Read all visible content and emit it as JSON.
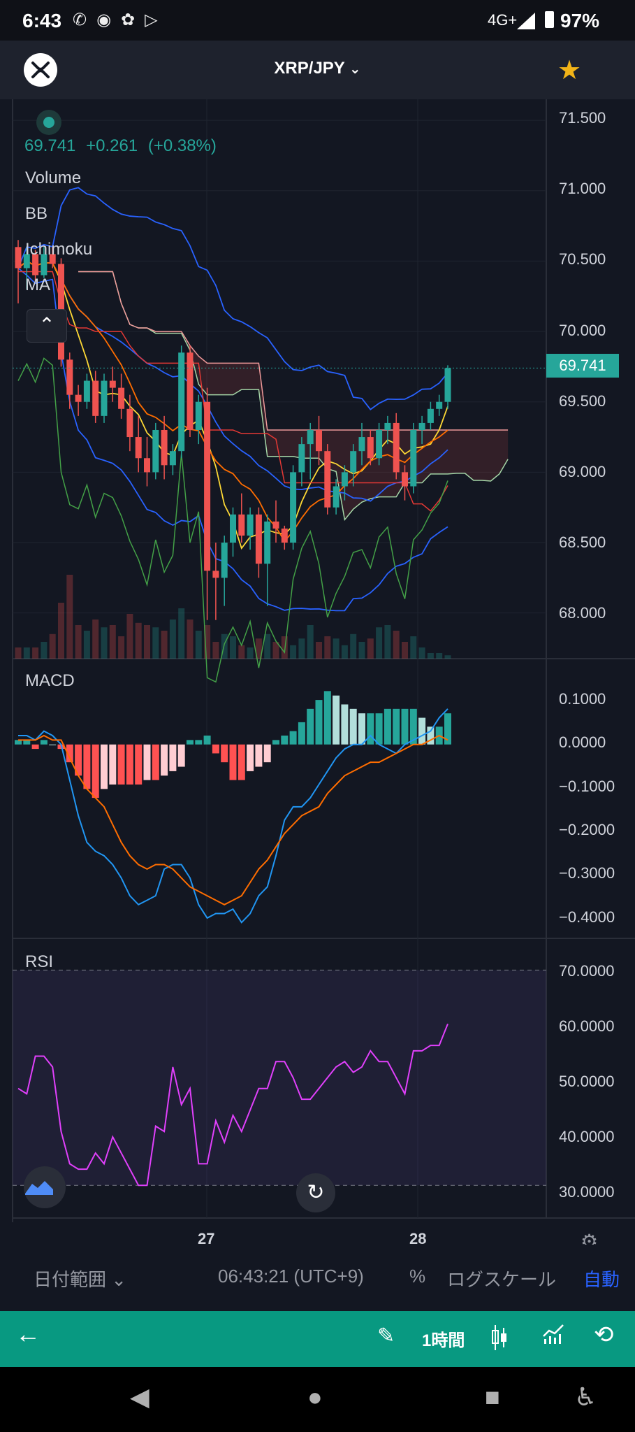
{
  "status_bar": {
    "time": "6:43",
    "network": "4G+",
    "battery": "97%"
  },
  "header": {
    "pair": "XRP/JPY",
    "coin_icon": "xrp-logo",
    "favorite_icon": "star-icon",
    "favorite_color": "#f2b418"
  },
  "legend": {
    "price": "69.741",
    "change": "+0.261",
    "change_pct": "(+0.38%)",
    "indicators": [
      "Volume",
      "BB",
      "Ichimoku",
      "MA"
    ]
  },
  "colors": {
    "up": "#26a69a",
    "down": "#ef5350",
    "accent": "#089981",
    "bb": "#2962ff",
    "macd": "#2196f3",
    "signal": "#ff6d00",
    "rsi": "#e040fb"
  },
  "price_axis": [
    "71.500",
    "71.000",
    "70.500",
    "70.000",
    "69.500",
    "69.000",
    "68.500",
    "68.000"
  ],
  "current_price_tag": "69.741",
  "macd": {
    "label": "MACD",
    "axis": [
      "0.1000",
      "0.0000",
      "−0.1000",
      "−0.2000",
      "−0.3000",
      "−0.4000"
    ]
  },
  "rsi": {
    "label": "RSI",
    "axis": [
      "70.0000",
      "60.0000",
      "50.0000",
      "40.0000",
      "30.0000"
    ]
  },
  "time_axis": [
    "27",
    "28"
  ],
  "toolbar": {
    "date_range": "日付範囲",
    "clock": "06:43:21 (UTC+9)",
    "percent": "%",
    "log_scale": "ログスケール",
    "auto": "自動"
  },
  "actionbar": {
    "interval": "1時間"
  },
  "chart_data": [
    {
      "type": "candlestick",
      "title": "XRP/JPY",
      "ylim": [
        67.75,
        71.6
      ],
      "candles": [
        [
          70.6,
          70.65,
          70.2,
          70.45
        ],
        [
          70.45,
          70.6,
          70.3,
          70.55
        ],
        [
          70.55,
          70.58,
          70.35,
          70.4
        ],
        [
          70.4,
          70.6,
          70.38,
          70.55
        ],
        [
          70.55,
          70.6,
          70.45,
          70.48
        ],
        [
          70.48,
          70.52,
          69.75,
          69.8
        ],
        [
          69.8,
          69.85,
          69.45,
          69.55
        ],
        [
          69.55,
          69.62,
          69.4,
          69.5
        ],
        [
          69.5,
          69.7,
          69.45,
          69.65
        ],
        [
          69.65,
          69.72,
          69.35,
          69.4
        ],
        [
          69.4,
          69.7,
          69.35,
          69.65
        ],
        [
          69.65,
          69.75,
          69.5,
          69.6
        ],
        [
          69.6,
          69.7,
          69.38,
          69.45
        ],
        [
          69.45,
          69.55,
          69.15,
          69.25
        ],
        [
          69.25,
          69.4,
          69.0,
          69.1
        ],
        [
          69.1,
          69.25,
          68.9,
          69.0
        ],
        [
          69.0,
          69.35,
          68.95,
          69.3
        ],
        [
          69.3,
          69.4,
          68.95,
          69.05
        ],
        [
          69.05,
          69.2,
          68.98,
          69.15
        ],
        [
          69.15,
          69.9,
          69.1,
          69.85
        ],
        [
          69.85,
          69.9,
          69.25,
          69.3
        ],
        [
          69.3,
          69.55,
          69.2,
          69.5
        ],
        [
          69.5,
          69.6,
          67.95,
          68.3
        ],
        [
          68.3,
          68.5,
          67.95,
          68.25
        ],
        [
          68.25,
          68.55,
          68.05,
          68.5
        ],
        [
          68.5,
          68.75,
          68.4,
          68.7
        ],
        [
          68.7,
          68.85,
          68.5,
          68.55
        ],
        [
          68.55,
          68.75,
          68.45,
          68.7
        ],
        [
          68.7,
          68.75,
          68.25,
          68.35
        ],
        [
          68.35,
          68.7,
          68.05,
          68.65
        ],
        [
          68.65,
          68.8,
          68.5,
          68.6
        ],
        [
          68.6,
          68.62,
          68.45,
          68.5
        ],
        [
          68.5,
          69.05,
          68.45,
          69.0
        ],
        [
          69.0,
          69.25,
          68.9,
          69.2
        ],
        [
          69.2,
          69.35,
          68.95,
          69.3
        ],
        [
          69.3,
          69.4,
          69.05,
          69.15
        ],
        [
          69.15,
          69.2,
          68.7,
          68.75
        ],
        [
          68.75,
          68.95,
          68.7,
          68.9
        ],
        [
          68.9,
          69.05,
          68.8,
          69.0
        ],
        [
          69.0,
          69.2,
          68.9,
          69.15
        ],
        [
          69.15,
          69.35,
          69.05,
          69.25
        ],
        [
          69.25,
          69.3,
          69.05,
          69.1
        ],
        [
          69.1,
          69.35,
          69.05,
          69.3
        ],
        [
          69.3,
          69.4,
          69.2,
          69.35
        ],
        [
          69.35,
          69.42,
          68.95,
          69.0
        ],
        [
          69.0,
          69.05,
          68.8,
          68.9
        ],
        [
          68.9,
          69.35,
          68.85,
          69.3
        ],
        [
          69.3,
          69.4,
          69.2,
          69.35
        ],
        [
          69.35,
          69.5,
          69.3,
          69.45
        ],
        [
          69.45,
          69.55,
          69.4,
          69.5
        ],
        [
          69.5,
          69.76,
          69.45,
          69.74
        ]
      ],
      "volume": [
        0.1,
        0.1,
        0.1,
        0.15,
        0.22,
        0.5,
        0.75,
        0.3,
        0.25,
        0.35,
        0.28,
        0.3,
        0.2,
        0.4,
        0.32,
        0.3,
        0.28,
        0.25,
        0.35,
        0.45,
        0.35,
        0.25,
        0.3,
        0.15,
        0.22,
        0.2,
        0.12,
        0.1,
        0.18,
        0.22,
        0.15,
        0.2,
        0.12,
        0.18,
        0.3,
        0.15,
        0.2,
        0.18,
        0.12,
        0.22,
        0.15,
        0.18,
        0.28,
        0.3,
        0.25,
        0.15,
        0.2,
        0.1,
        0.05,
        0.05,
        0.03
      ]
    },
    {
      "type": "histogram+line",
      "title": "MACD",
      "ylim": [
        -0.42,
        0.13
      ],
      "histogram": [
        0.01,
        0.01,
        -0.01,
        0.01,
        0.0,
        -0.01,
        -0.04,
        -0.07,
        -0.1,
        -0.12,
        -0.1,
        -0.09,
        -0.09,
        -0.09,
        -0.09,
        -0.08,
        -0.08,
        -0.07,
        -0.06,
        -0.05,
        0.01,
        0.01,
        0.02,
        -0.02,
        -0.04,
        -0.08,
        -0.08,
        -0.06,
        -0.05,
        -0.04,
        0.01,
        0.02,
        0.03,
        0.05,
        0.08,
        0.1,
        0.12,
        0.11,
        0.09,
        0.08,
        0.07,
        0.07,
        0.07,
        0.08,
        0.08,
        0.08,
        0.08,
        0.06,
        0.04,
        0.04,
        0.07
      ],
      "macd_line": [
        0.02,
        0.02,
        0.01,
        0.03,
        0.02,
        0.0,
        -0.08,
        -0.16,
        -0.22,
        -0.24,
        -0.25,
        -0.27,
        -0.3,
        -0.34,
        -0.36,
        -0.35,
        -0.34,
        -0.28,
        -0.27,
        -0.27,
        -0.3,
        -0.36,
        -0.39,
        -0.38,
        -0.38,
        -0.37,
        -0.4,
        -0.38,
        -0.34,
        -0.32,
        -0.25,
        -0.17,
        -0.14,
        -0.14,
        -0.12,
        -0.09,
        -0.06,
        -0.03,
        -0.01,
        0.0,
        0.0,
        0.02,
        0.0,
        -0.01,
        -0.02,
        0.0,
        0.01,
        0.02,
        0.03,
        0.06,
        0.08
      ],
      "signal_line": [
        0.01,
        0.01,
        0.01,
        0.02,
        0.01,
        0.01,
        -0.03,
        -0.07,
        -0.1,
        -0.12,
        -0.14,
        -0.18,
        -0.22,
        -0.25,
        -0.27,
        -0.28,
        -0.27,
        -0.27,
        -0.28,
        -0.3,
        -0.32,
        -0.33,
        -0.34,
        -0.35,
        -0.36,
        -0.35,
        -0.34,
        -0.31,
        -0.28,
        -0.26,
        -0.23,
        -0.2,
        -0.18,
        -0.16,
        -0.15,
        -0.14,
        -0.11,
        -0.09,
        -0.07,
        -0.06,
        -0.05,
        -0.04,
        -0.04,
        -0.03,
        -0.02,
        -0.01,
        0.0,
        0.0,
        0.01,
        0.02,
        0.01
      ]
    },
    {
      "type": "line",
      "title": "RSI",
      "ylim": [
        26,
        72
      ],
      "overbought": 70,
      "oversold": 30,
      "values": [
        48,
        47,
        54,
        54,
        52,
        40,
        34,
        33,
        33,
        36,
        34,
        39,
        36,
        33,
        30,
        30,
        41,
        40,
        52,
        45,
        48,
        34,
        34,
        42,
        38,
        43,
        40,
        44,
        48,
        48,
        53,
        53,
        50,
        46,
        46,
        48,
        50,
        52,
        53,
        51,
        52,
        55,
        53,
        53,
        50,
        47,
        55,
        55,
        56,
        56,
        60
      ]
    }
  ]
}
